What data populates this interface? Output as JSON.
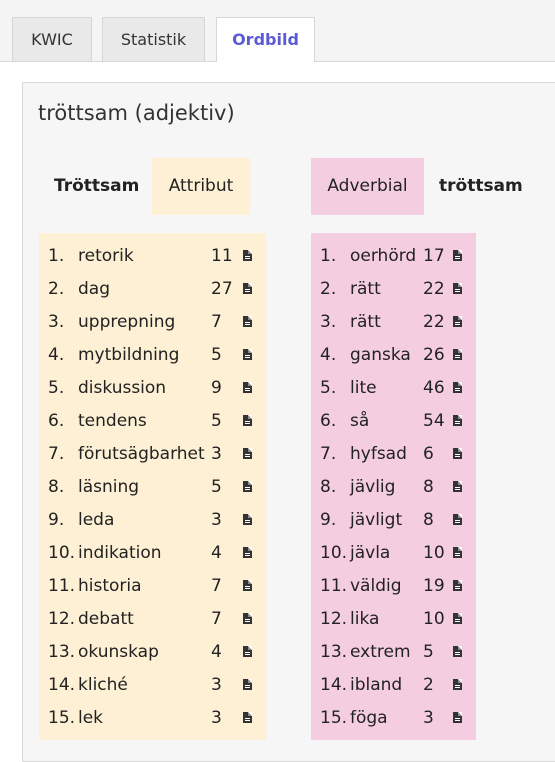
{
  "tabs": [
    {
      "label": "KWIC",
      "active": false
    },
    {
      "label": "Statistik",
      "active": false
    },
    {
      "label": "Ordbild",
      "active": true
    }
  ],
  "colors": {
    "active_tab_text": "#5b5bd6",
    "attribut_bg": "#fdf0d5",
    "adverbial_bg": "#f5cde1"
  },
  "heading": "tröttsam (adjektiv)",
  "attribut": {
    "word_label": "Tröttsam",
    "relation_label": "Attribut",
    "icon": "document-icon",
    "items": [
      {
        "idx": "1.",
        "word": "retorik",
        "count": "11"
      },
      {
        "idx": "2.",
        "word": "dag",
        "count": "27"
      },
      {
        "idx": "3.",
        "word": "upprepning",
        "count": "7"
      },
      {
        "idx": "4.",
        "word": "mytbildning",
        "count": "5"
      },
      {
        "idx": "5.",
        "word": "diskussion",
        "count": "9"
      },
      {
        "idx": "6.",
        "word": "tendens",
        "count": "5"
      },
      {
        "idx": "7.",
        "word": "förutsägbarhet",
        "count": "3"
      },
      {
        "idx": "8.",
        "word": "läsning",
        "count": "5"
      },
      {
        "idx": "9.",
        "word": "leda",
        "count": "3"
      },
      {
        "idx": "10.",
        "word": "indikation",
        "count": "4"
      },
      {
        "idx": "11.",
        "word": "historia",
        "count": "7"
      },
      {
        "idx": "12.",
        "word": "debatt",
        "count": "7"
      },
      {
        "idx": "13.",
        "word": "okunskap",
        "count": "4"
      },
      {
        "idx": "14.",
        "word": "kliché",
        "count": "3"
      },
      {
        "idx": "15.",
        "word": "lek",
        "count": "3"
      }
    ]
  },
  "adverbial": {
    "word_label": "tröttsam",
    "relation_label": "Adverbial",
    "icon": "document-icon",
    "items": [
      {
        "idx": "1.",
        "word": "oerhörd",
        "count": "17"
      },
      {
        "idx": "2.",
        "word": "rätt",
        "count": "22"
      },
      {
        "idx": "3.",
        "word": "rätt",
        "count": "22"
      },
      {
        "idx": "4.",
        "word": "ganska",
        "count": "26"
      },
      {
        "idx": "5.",
        "word": "lite",
        "count": "46"
      },
      {
        "idx": "6.",
        "word": "så",
        "count": "54"
      },
      {
        "idx": "7.",
        "word": "hyfsad",
        "count": "6"
      },
      {
        "idx": "8.",
        "word": "jävlig",
        "count": "8"
      },
      {
        "idx": "9.",
        "word": "jävligt",
        "count": "8"
      },
      {
        "idx": "10.",
        "word": "jävla",
        "count": "10"
      },
      {
        "idx": "11.",
        "word": "väldig",
        "count": "19"
      },
      {
        "idx": "12.",
        "word": "lika",
        "count": "10"
      },
      {
        "idx": "13.",
        "word": "extrem",
        "count": "5"
      },
      {
        "idx": "14.",
        "word": "ibland",
        "count": "2"
      },
      {
        "idx": "15.",
        "word": "föga",
        "count": "3"
      }
    ]
  }
}
